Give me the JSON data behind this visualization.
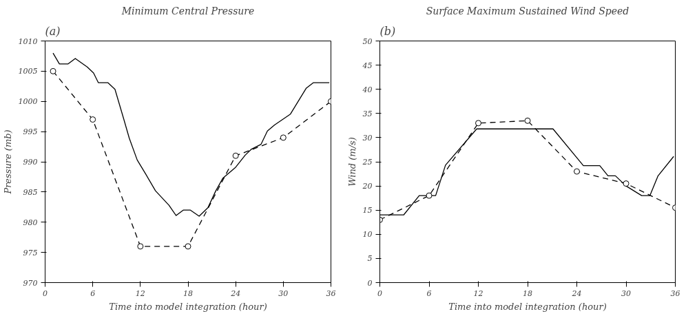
{
  "chart_data": [
    {
      "type": "line",
      "title": "Minimum Central Pressure",
      "xlabel": "Time into model integration (hour)",
      "ylabel": "Pressure (mb)",
      "annotations": [
        "(a)"
      ],
      "xlim": [
        0,
        36
      ],
      "ylim": [
        970,
        1010
      ],
      "xticks": [
        0,
        6,
        12,
        18,
        24,
        30,
        36
      ],
      "yticks": [
        970,
        975,
        980,
        985,
        990,
        995,
        1000,
        1005,
        1010
      ],
      "grid": false,
      "series": [
        {
          "color": "#000000",
          "line_style": "solid",
          "marker": "none",
          "x": [
            1,
            1.8,
            2.9,
            3.8,
            5.3,
            6.1,
            6.7,
            7.9,
            8.8,
            9.9,
            10.6,
            11.6,
            12.7,
            13.9,
            15.6,
            16.5,
            17.4,
            18.3,
            19.4,
            20.5,
            21.5,
            22.4,
            24,
            25.2,
            26,
            27.2,
            28,
            28.9,
            30.9,
            32.9,
            33.8,
            35.8
          ],
          "values": [
            1008,
            1006.2,
            1006.2,
            1007.1,
            1005.7,
            1004.7,
            1003.1,
            1003.1,
            1002,
            997.1,
            993.9,
            990.3,
            987.9,
            985.2,
            982.8,
            981.1,
            982,
            982,
            981,
            982.4,
            985.2,
            987.3,
            989.1,
            991.1,
            992.1,
            992.9,
            995.1,
            996.1,
            997.9,
            1002.2,
            1003.1,
            1003.1
          ]
        },
        {
          "color": "#000000",
          "line_style": "dashed",
          "marker": "circle",
          "x": [
            1,
            6,
            12,
            18,
            24,
            30,
            36
          ],
          "values": [
            1005,
            997,
            976,
            976,
            991,
            994,
            1000
          ]
        }
      ]
    },
    {
      "type": "line",
      "title": "Surface Maximum Sustained Wind Speed",
      "xlabel": "Time into model integration (hour)",
      "ylabel": "Wind (m/s)",
      "annotations": [
        "(b)"
      ],
      "xlim": [
        0,
        36
      ],
      "ylim": [
        0,
        50
      ],
      "xticks": [
        0,
        6,
        12,
        18,
        24,
        30,
        36
      ],
      "yticks": [
        0,
        5,
        10,
        15,
        20,
        25,
        30,
        35,
        40,
        45,
        50
      ],
      "grid": false,
      "series": [
        {
          "color": "#000000",
          "line_style": "solid",
          "marker": "none",
          "x": [
            0,
            2.9,
            4.8,
            6.8,
            8,
            11.8,
            21.1,
            24.8,
            26.8,
            27.8,
            28.7,
            30,
            31.9,
            32.9,
            33.9,
            35.8
          ],
          "values": [
            14,
            14,
            18,
            18,
            24.3,
            31.8,
            31.8,
            24.2,
            24.2,
            22.1,
            22.1,
            20,
            18,
            18,
            22.1,
            26.1
          ]
        },
        {
          "color": "#000000",
          "line_style": "dashed",
          "marker": "circle",
          "x": [
            0,
            6,
            12,
            18,
            24,
            30,
            36
          ],
          "values": [
            13,
            18,
            33,
            33.5,
            23,
            20.5,
            15.5
          ]
        }
      ]
    }
  ]
}
